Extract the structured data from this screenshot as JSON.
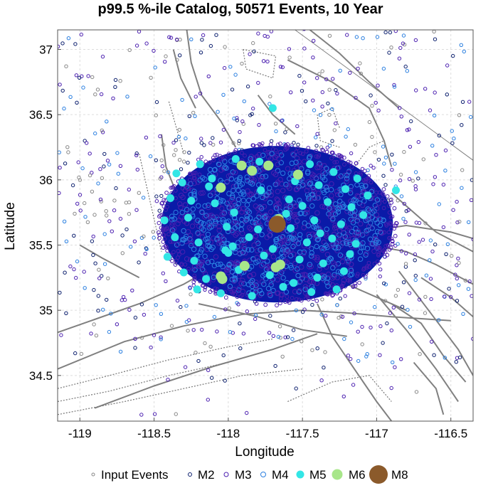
{
  "chart_data": {
    "type": "scatter",
    "title": "p99.5 %-ile Catalog, 50571 Events, 10 Year",
    "xlabel": "Longitude",
    "ylabel": "Latitude",
    "xlim": [
      -119.15,
      -116.35
    ],
    "ylim": [
      34.15,
      37.15
    ],
    "x_ticks": [
      -119,
      -118.5,
      -118,
      -117.5,
      -117,
      -116.5
    ],
    "x_tick_labels": [
      "-119",
      "-118.5",
      "-118",
      "-117.5",
      "-117",
      "-116.5"
    ],
    "y_ticks": [
      34.5,
      35,
      35.5,
      36,
      36.5,
      37
    ],
    "y_tick_labels": [
      "34.5",
      "35",
      "35.5",
      "36",
      "36.5",
      "37"
    ],
    "grid": true,
    "legend_position": "bottom",
    "colors": {
      "input": "#888888",
      "m2": "#0c1f6e",
      "m3": "#4b1fb0",
      "m4": "#2a7fe0",
      "m5": "#33e6e6",
      "m6": "#a8e68a",
      "m8": "#8b5a2b",
      "cloud": "#0a1aa8",
      "fault": "#808080"
    },
    "legend": [
      {
        "label": "Input Events",
        "marker": "input"
      },
      {
        "label": "M2",
        "marker": "m2"
      },
      {
        "label": "M3",
        "marker": "m3"
      },
      {
        "label": "M4",
        "marker": "m4"
      },
      {
        "label": "M5",
        "marker": "m5"
      },
      {
        "label": "M6",
        "marker": "m6"
      },
      {
        "label": "M8",
        "marker": "m8"
      }
    ],
    "cloud_center": [
      -117.67,
      35.66
    ],
    "cloud_radius_deg": [
      0.78,
      0.6
    ],
    "series": [
      {
        "name": "M8",
        "marker": "m8",
        "x": [
          -117.67
        ],
        "y": [
          35.66
        ]
      },
      {
        "name": "M6",
        "marker": "m6",
        "x": [
          -117.91,
          -117.84,
          -117.73,
          -117.53,
          -117.66,
          -118.05,
          -117.89,
          -117.65,
          -117.68,
          -118.04,
          -118.05
        ],
        "y": [
          36.11,
          36.07,
          36.11,
          36.04,
          35.7,
          35.26,
          35.34,
          35.35,
          35.33,
          35.24,
          35.94
        ]
      },
      {
        "name": "M5",
        "marker": "m5",
        "x": [
          -118.35,
          -118.19,
          -117.95,
          -117.79,
          -117.45,
          -117.29,
          -117.13,
          -118.31,
          -118.13,
          -117.55,
          -117.39,
          -117.21,
          -117.06,
          -118.39,
          -118.25,
          -118.09,
          -117.59,
          -117.5,
          -117.33,
          -117.17,
          -118.43,
          -118.27,
          -118.01,
          -117.8,
          -117.61,
          -117.42,
          -117.24,
          -117.09,
          -118.36,
          -118.2,
          -117.97,
          -117.86,
          -117.7,
          -117.47,
          -117.3,
          -117.14,
          -118.41,
          -118.23,
          -118.0,
          -117.76,
          -117.52,
          -117.36,
          -117.18,
          -118.3,
          -118.15,
          -117.93,
          -117.72,
          -117.56,
          -117.4,
          -117.22,
          -118.21,
          -118.05,
          -117.84,
          -117.63,
          -117.44,
          -117.27,
          -118.11,
          -117.96,
          -117.78,
          -117.58,
          -117.38,
          -116.87,
          -117.7,
          -118.02
        ],
        "y": [
          36.05,
          36.12,
          36.16,
          36.14,
          36.12,
          36.06,
          36.01,
          35.98,
          35.95,
          35.99,
          35.96,
          35.93,
          35.88,
          35.86,
          35.84,
          35.82,
          35.85,
          35.8,
          35.83,
          35.79,
          35.69,
          35.71,
          35.64,
          35.62,
          35.74,
          35.69,
          35.66,
          35.73,
          35.56,
          35.52,
          35.49,
          35.56,
          35.47,
          35.52,
          35.55,
          35.51,
          35.41,
          35.38,
          35.44,
          35.42,
          35.39,
          35.36,
          35.43,
          35.29,
          35.24,
          35.31,
          35.27,
          35.21,
          35.25,
          35.3,
          35.16,
          35.13,
          35.11,
          35.18,
          35.14,
          35.16,
          36.01,
          35.75,
          35.92,
          35.63,
          35.59,
          35.92,
          36.55,
          35.46
        ]
      }
    ]
  }
}
